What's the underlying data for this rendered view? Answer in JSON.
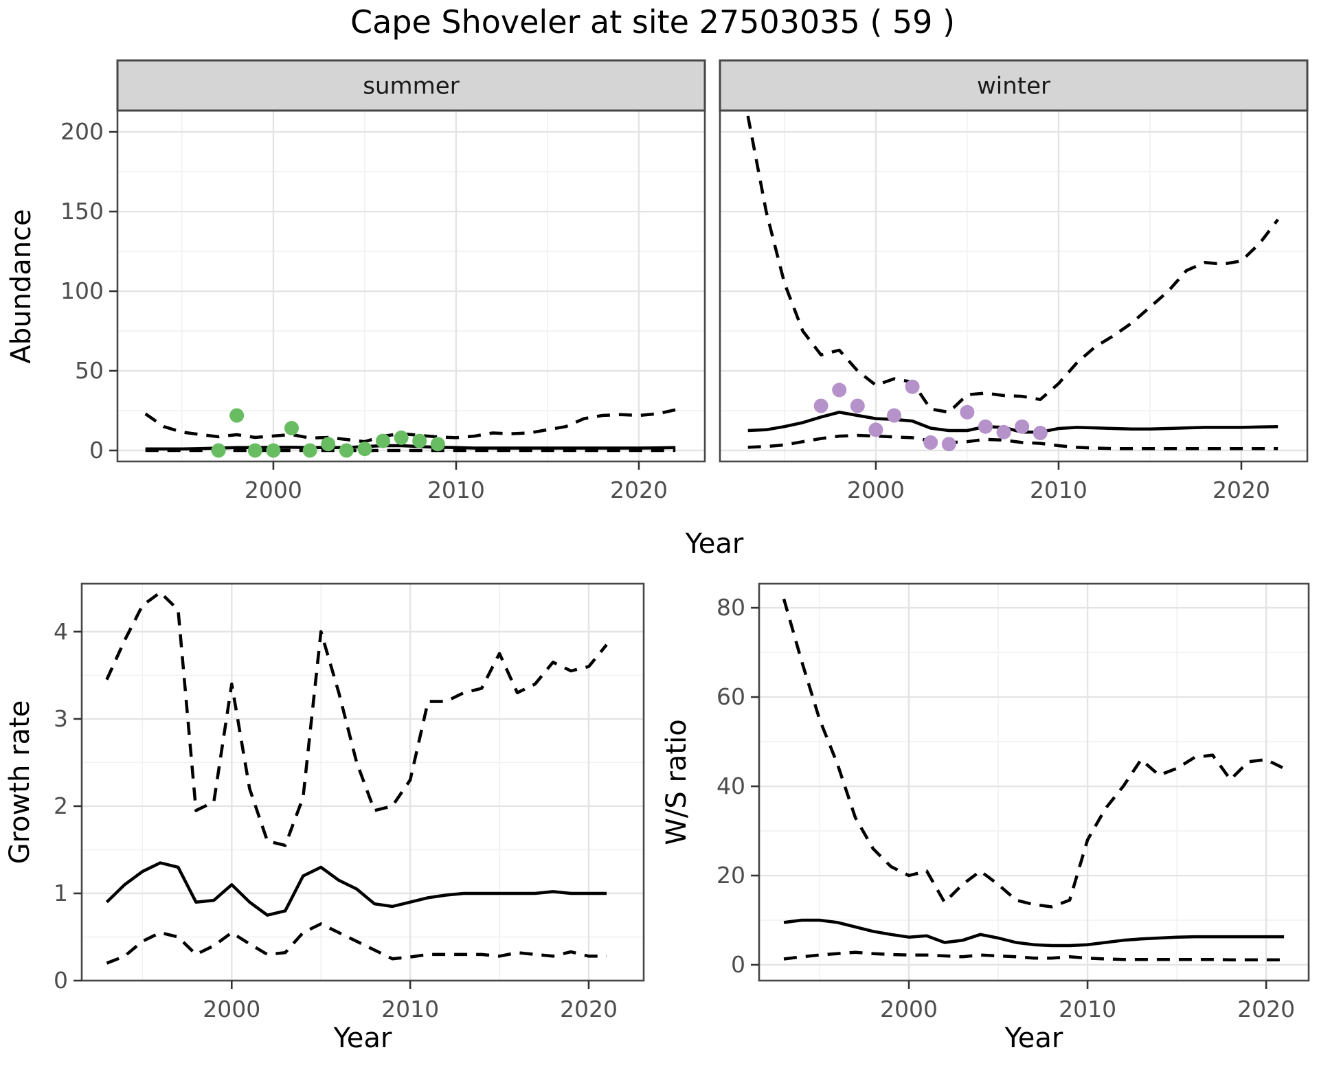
{
  "title": "Cape Shoveler at site 27503035 ( 59 )",
  "axis_labels": {
    "ylabel_abundance": "Abundance",
    "xlabel_top": "Year",
    "ylabel_growth": "Growth rate",
    "xlabel_bottom_left": "Year",
    "ylabel_ws": "W/S ratio",
    "xlabel_bottom_right": "Year"
  },
  "colors": {
    "summer_points": "#68bd62",
    "winter_points": "#b592c9",
    "line": "#000000",
    "grid_major": "#e4e4e4",
    "grid_minor": "#f1f1f1",
    "strip_bg": "#d5d5d5",
    "panel_border": "#474747",
    "axis_text": "#4d4d4d",
    "title_text": "#000000"
  },
  "chart_data": [
    {
      "id": "abundance_summer",
      "type": "line",
      "facet_label": "summer",
      "xlabel": "Year",
      "ylabel": "Abundance",
      "x": [
        1993,
        1994,
        1995,
        1996,
        1997,
        1998,
        1999,
        2000,
        2001,
        2002,
        2003,
        2004,
        2005,
        2006,
        2007,
        2008,
        2009,
        2010,
        2011,
        2012,
        2013,
        2014,
        2015,
        2016,
        2017,
        2018,
        2019,
        2020,
        2021,
        2022
      ],
      "series": [
        {
          "name": "upper_ci",
          "style": "dashed",
          "values": [
            23,
            15,
            11.5,
            10,
            8.6,
            9.9,
            8.2,
            9.1,
            10,
            7.8,
            8.2,
            6.9,
            5.5,
            9,
            10.5,
            9.5,
            8.5,
            8,
            9,
            11,
            10.5,
            11,
            13,
            15,
            20,
            22,
            22.5,
            22,
            23,
            25.5
          ]
        },
        {
          "name": "fit",
          "style": "solid",
          "values": [
            1,
            1,
            1,
            1.2,
            1.5,
            1.8,
            1.8,
            2,
            2,
            1.8,
            1.8,
            1.8,
            2.5,
            3,
            3,
            2.5,
            2,
            1.8,
            1.5,
            1.5,
            1.5,
            1.5,
            1.5,
            1.5,
            1.5,
            1.5,
            1.5,
            1.5,
            1.6,
            1.8
          ]
        },
        {
          "name": "lower_ci",
          "style": "dashed",
          "values": [
            0,
            0,
            0,
            0,
            0,
            0,
            0,
            0,
            0,
            0,
            0,
            0,
            0,
            0,
            0,
            0,
            0,
            0,
            0,
            0,
            0,
            0,
            0,
            0,
            0,
            0,
            0,
            0,
            0,
            0
          ]
        }
      ],
      "points": {
        "name": "observed_counts",
        "color": "#68bd62",
        "data": [
          [
            1997,
            0
          ],
          [
            1998,
            22
          ],
          [
            1999,
            0
          ],
          [
            2000,
            0
          ],
          [
            2001,
            14
          ],
          [
            2002,
            0
          ],
          [
            2003,
            4
          ],
          [
            2004,
            0
          ],
          [
            2005,
            1
          ],
          [
            2006,
            6
          ],
          [
            2007,
            8
          ],
          [
            2008,
            6
          ],
          [
            2009,
            4
          ]
        ]
      },
      "xlim": [
        1991.47,
        2023.61
      ],
      "ylim": [
        -6.9,
        213.4
      ],
      "xticks": [
        2000,
        2010,
        2020
      ],
      "xminor": [
        1995,
        2005,
        2015
      ],
      "yticks": [
        0,
        50,
        100,
        150,
        200
      ],
      "yminor": [
        25,
        75,
        125,
        175
      ]
    },
    {
      "id": "abundance_winter",
      "type": "line",
      "facet_label": "winter",
      "xlabel": "Year",
      "ylabel": "Abundance",
      "x": [
        1993,
        1994,
        1995,
        1996,
        1997,
        1998,
        1999,
        2000,
        2001,
        2002,
        2003,
        2004,
        2005,
        2006,
        2007,
        2008,
        2009,
        2010,
        2011,
        2012,
        2013,
        2014,
        2015,
        2016,
        2017,
        2018,
        2019,
        2020,
        2021,
        2022
      ],
      "series": [
        {
          "name": "upper_ci",
          "style": "dashed",
          "values": [
            210,
            150,
            105,
            75,
            60,
            63,
            50,
            41,
            45,
            43,
            26,
            24,
            35,
            36,
            34.5,
            34,
            32,
            42,
            55,
            65,
            72,
            80,
            90,
            100,
            113,
            118,
            117,
            119,
            130,
            145
          ]
        },
        {
          "name": "fit",
          "style": "solid",
          "values": [
            12.5,
            13,
            15,
            17.5,
            21,
            24,
            22,
            20,
            19.5,
            18.5,
            14,
            12.5,
            12.5,
            15,
            14.5,
            11.5,
            11.5,
            13.8,
            14.5,
            14.2,
            13.8,
            13.5,
            13.5,
            13.8,
            14.2,
            14.5,
            14.5,
            14.5,
            14.8,
            15
          ]
        },
        {
          "name": "lower_ci",
          "style": "dashed",
          "values": [
            2,
            2.5,
            3.5,
            5.5,
            7.5,
            9,
            9.5,
            9,
            8.5,
            8,
            6,
            5,
            5.5,
            7,
            6.5,
            5,
            4.5,
            3,
            2,
            1.5,
            1.2,
            1.2,
            1.2,
            1.2,
            1.2,
            1.2,
            1.2,
            1.2,
            1.2,
            1.2
          ]
        }
      ],
      "points": {
        "name": "observed_counts",
        "color": "#b592c9",
        "data": [
          [
            1997,
            28
          ],
          [
            1998,
            38
          ],
          [
            1999,
            28
          ],
          [
            2000,
            13
          ],
          [
            2001,
            22
          ],
          [
            2002,
            40
          ],
          [
            2003,
            5
          ],
          [
            2004,
            4
          ],
          [
            2005,
            24
          ],
          [
            2006,
            15
          ],
          [
            2007,
            11.5
          ],
          [
            2008,
            15
          ],
          [
            2009,
            11
          ]
        ]
      },
      "xlim": [
        1991.47,
        2023.61
      ],
      "ylim": [
        -6.9,
        213.4
      ],
      "xticks": [
        2000,
        2010,
        2020
      ],
      "xminor": [
        1995,
        2005,
        2015
      ],
      "yticks": [
        0,
        50,
        100,
        150,
        200
      ],
      "yminor": [
        25,
        75,
        125,
        175
      ]
    },
    {
      "id": "growth_rate",
      "type": "line",
      "facet_label": null,
      "xlabel": "Year",
      "ylabel": "Growth rate",
      "x": [
        1993,
        1994,
        1995,
        1996,
        1997,
        1998,
        1999,
        2000,
        2001,
        2002,
        2003,
        2004,
        2005,
        2006,
        2007,
        2008,
        2009,
        2010,
        2011,
        2012,
        2013,
        2014,
        2015,
        2016,
        2017,
        2018,
        2019,
        2020,
        2021
      ],
      "series": [
        {
          "name": "upper_ci",
          "style": "dashed",
          "values": [
            3.45,
            3.9,
            4.3,
            4.45,
            4.25,
            1.95,
            2.05,
            3.4,
            2.2,
            1.6,
            1.55,
            2.1,
            4.0,
            3.3,
            2.5,
            1.95,
            2.0,
            2.3,
            3.2,
            3.2,
            3.3,
            3.35,
            3.75,
            3.3,
            3.4,
            3.65,
            3.55,
            3.6,
            3.85
          ]
        },
        {
          "name": "fit",
          "style": "solid",
          "values": [
            0.9,
            1.1,
            1.25,
            1.35,
            1.3,
            0.9,
            0.92,
            1.1,
            0.9,
            0.75,
            0.8,
            1.2,
            1.3,
            1.15,
            1.05,
            0.88,
            0.85,
            0.9,
            0.95,
            0.98,
            1.0,
            1.0,
            1.0,
            1.0,
            1.0,
            1.02,
            1.0,
            1.0,
            1.0
          ]
        },
        {
          "name": "lower_ci",
          "style": "dashed",
          "values": [
            0.2,
            0.28,
            0.45,
            0.55,
            0.5,
            0.3,
            0.4,
            0.55,
            0.42,
            0.3,
            0.32,
            0.55,
            0.65,
            0.55,
            0.45,
            0.35,
            0.25,
            0.27,
            0.3,
            0.3,
            0.3,
            0.3,
            0.28,
            0.32,
            0.3,
            0.28,
            0.33,
            0.28,
            0.28
          ]
        }
      ],
      "points": null,
      "xlim": [
        1991.6,
        2023.08
      ],
      "ylim": [
        0,
        4.55
      ],
      "xticks": [
        2000,
        2010,
        2020
      ],
      "xminor": [
        1995,
        2005,
        2015
      ],
      "yticks": [
        0,
        1,
        2,
        3,
        4
      ],
      "yminor": [
        0.5,
        1.5,
        2.5,
        3.5
      ]
    },
    {
      "id": "ws_ratio",
      "type": "line",
      "facet_label": null,
      "xlabel": "Year",
      "ylabel": "W/S ratio",
      "x": [
        1993,
        1994,
        1995,
        1996,
        1997,
        1998,
        1999,
        2000,
        2001,
        2002,
        2003,
        2004,
        2005,
        2006,
        2007,
        2008,
        2009,
        2010,
        2011,
        2012,
        2013,
        2014,
        2015,
        2016,
        2017,
        2018,
        2019,
        2020,
        2021
      ],
      "series": [
        {
          "name": "upper_ci",
          "style": "dashed",
          "values": [
            82,
            68,
            55,
            45,
            33,
            26,
            22,
            20,
            21,
            14,
            18,
            21,
            18,
            14.5,
            13.5,
            13,
            14.5,
            28,
            35,
            40,
            46,
            42.5,
            44,
            46.5,
            47,
            41.5,
            45.5,
            46,
            44
          ]
        },
        {
          "name": "fit",
          "style": "solid",
          "values": [
            9.5,
            10,
            10,
            9.5,
            8.5,
            7.5,
            6.8,
            6.2,
            6.5,
            5,
            5.5,
            6.8,
            6,
            5,
            4.5,
            4.3,
            4.3,
            4.5,
            5,
            5.5,
            5.8,
            6,
            6.2,
            6.3,
            6.3,
            6.3,
            6.3,
            6.3,
            6.3
          ]
        },
        {
          "name": "lower_ci",
          "style": "dashed",
          "values": [
            1.3,
            1.8,
            2.2,
            2.5,
            2.8,
            2.5,
            2.3,
            2.2,
            2.2,
            2.0,
            1.8,
            2.2,
            2.0,
            1.8,
            1.5,
            1.5,
            1.8,
            1.5,
            1.3,
            1.2,
            1.2,
            1.2,
            1.2,
            1.2,
            1.2,
            1.1,
            1.1,
            1.1,
            1.1
          ]
        }
      ],
      "points": null,
      "xlim": [
        1991.615,
        2022.38
      ],
      "ylim": [
        -3.54,
        85.4
      ],
      "xticks": [
        2000,
        2010,
        2020
      ],
      "xminor": [
        1995,
        2005,
        2015
      ],
      "yticks": [
        0,
        20,
        40,
        60,
        80
      ],
      "yminor": [
        10,
        30,
        50,
        70
      ]
    }
  ]
}
